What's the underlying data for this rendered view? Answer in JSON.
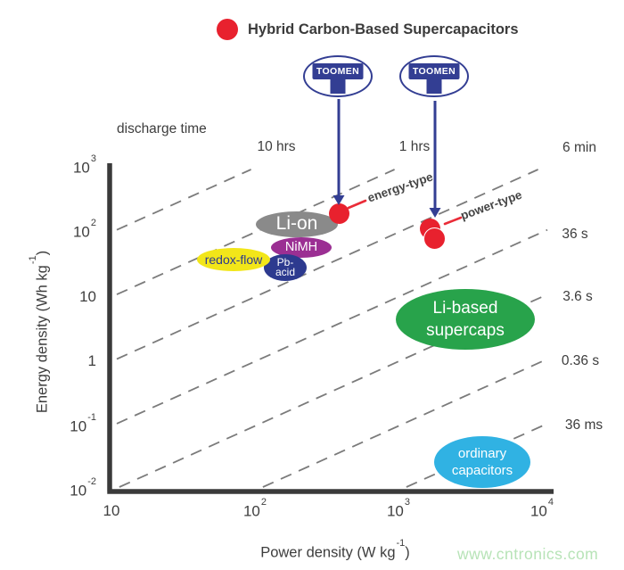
{
  "ui": {
    "legend_title": "Hybrid Carbon-Based Supercapacitors",
    "legend_marker_color": "#e8212e",
    "logo_text": "TOOMEN",
    "logo_color": "#333e93",
    "discharge_time_label": "discharge time",
    "energy_type_label": "energy-type",
    "power_type_label": "power-type",
    "watermark": "www.cntronics.com",
    "x_axis": {
      "prefix": "Power density (W kg",
      "sup": "-1",
      "suffix": ")"
    },
    "y_axis": {
      "prefix": "Energy density (Wh kg",
      "sup": "-1",
      "suffix": ")"
    }
  },
  "chart_data": {
    "type": "scatter",
    "title": "Hybrid Carbon-Based Supercapacitors",
    "xlabel": "Power density (W kg-1)",
    "ylabel": "Energy density (Wh kg-1)",
    "x_scale": "log",
    "y_scale": "log",
    "xlim": [
      10,
      10000
    ],
    "ylim": [
      0.01,
      1000
    ],
    "x_ticks": [
      {
        "base": "10",
        "exp": ""
      },
      {
        "base": "10",
        "exp": "2"
      },
      {
        "base": "10",
        "exp": "3"
      },
      {
        "base": "10",
        "exp": "4"
      }
    ],
    "y_ticks": [
      {
        "base": "10",
        "exp": "3"
      },
      {
        "base": "10",
        "exp": "2"
      },
      {
        "base": "10",
        "exp": ""
      },
      {
        "base": "1",
        "exp": ""
      },
      {
        "base": "10",
        "exp": "-1"
      },
      {
        "base": "10",
        "exp": "-2"
      }
    ],
    "grid": "diagonal dashed isochrone (constant discharge time) lines",
    "legend_position": "top",
    "isochrones": [
      {
        "label": "10 hrs",
        "hours": 10
      },
      {
        "label": "1 hrs",
        "hours": 1
      },
      {
        "label": "6 min",
        "hours": 0.1
      },
      {
        "label": "36 s",
        "hours": 0.01
      },
      {
        "label": "3.6 s",
        "hours": 0.001
      },
      {
        "label": "0.36 s",
        "hours": 0.0001
      },
      {
        "label": "36 ms",
        "hours": 1e-05
      }
    ],
    "regions": [
      {
        "id": "liion",
        "lines": [
          "Li-on"
        ],
        "fill": "#8a8a8a",
        "text_color": "#ffffff",
        "power_w_kg": [
          100,
          400
        ],
        "energy_wh_kg": [
          90,
          220
        ],
        "center": {
          "power": 200,
          "energy": 140
        }
      },
      {
        "id": "nimh",
        "lines": [
          "NiMH"
        ],
        "fill": "#9b2f93",
        "text_color": "#ffffff",
        "power_w_kg": [
          140,
          390
        ],
        "energy_wh_kg": [
          33,
          80
        ],
        "center": {
          "power": 230,
          "energy": 57
        }
      },
      {
        "id": "pbacid",
        "lines": [
          "Pb-",
          "acid"
        ],
        "fill": "#2d3a8f",
        "text_color": "#ffffff",
        "power_w_kg": [
          130,
          250
        ],
        "energy_wh_kg": [
          17,
          46
        ],
        "center": {
          "power": 180,
          "energy": 28
        }
      },
      {
        "id": "redox",
        "lines": [
          "redox-flow"
        ],
        "fill": "#f2e619",
        "text_color": "#2d3a8f",
        "power_w_kg": [
          40,
          140
        ],
        "energy_wh_kg": [
          25,
          57
        ],
        "center": {
          "power": 75,
          "energy": 38
        }
      },
      {
        "id": "libased",
        "lines": [
          "Li-based",
          "supercaps"
        ],
        "fill": "#28a34b",
        "text_color": "#ffffff",
        "power_w_kg": [
          1000,
          9000
        ],
        "energy_wh_kg": [
          1.5,
          13
        ],
        "center": {
          "power": 2900,
          "energy": 4.5
        }
      },
      {
        "id": "ordinary",
        "lines": [
          "ordinary",
          "capacitors"
        ],
        "fill": "#30b2e3",
        "text_color": "#ffffff",
        "power_w_kg": [
          1800,
          8300
        ],
        "energy_wh_kg": [
          0.01,
          0.07
        ],
        "center": {
          "power": 3800,
          "energy": 0.03
        }
      }
    ],
    "points": [
      {
        "id": "energy-dot",
        "series": "energy-type",
        "power_w_kg": 400,
        "energy_wh_kg": 200,
        "color": "#e8212e"
      },
      {
        "id": "power-dot-1",
        "series": "power-type",
        "power_w_kg": 1650,
        "energy_wh_kg": 115,
        "color": "#e8212e"
      },
      {
        "id": "power-dot-2",
        "series": "power-type",
        "power_w_kg": 1800,
        "energy_wh_kg": 80,
        "color": "#e8212e"
      }
    ],
    "colors": {
      "isochrone_line": "#7b7b7b",
      "axis": "#3a3a3a",
      "arrow_blue": "#333e93",
      "connector_red": "#ea2c38"
    }
  }
}
